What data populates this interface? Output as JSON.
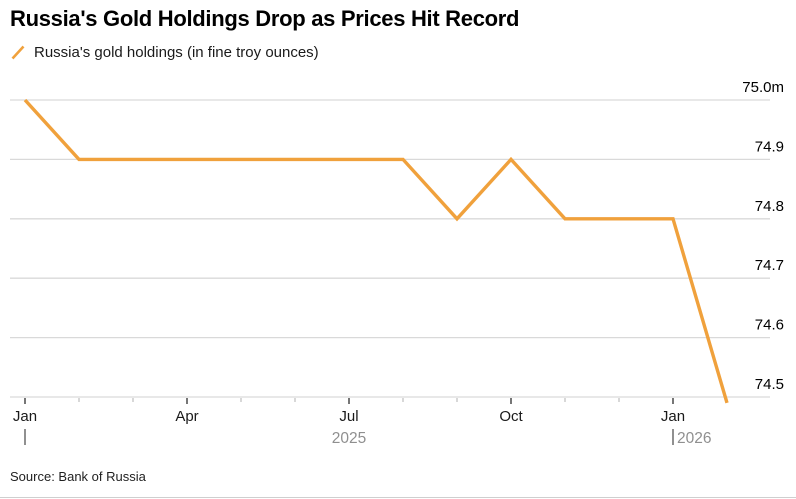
{
  "header": {
    "title": "Russia's Gold Holdings Drop as Prices Hit Record",
    "legend_label": "Russia's gold holdings (in fine troy ounces)"
  },
  "footer": {
    "source": "Source: Bank of Russia"
  },
  "colors": {
    "accent": "#F0A13C",
    "grid": "#d9d9d9",
    "y_label": "#000000",
    "month_label": "#1a1a1a",
    "year_label": "#8f8f8f",
    "year_divider": "#555555",
    "tick_major": "#3c3c3c",
    "tick_minor": "#b0b0b0"
  },
  "chart_data": {
    "type": "line",
    "title": "Russia's Gold Holdings Drop as Prices Hit Record",
    "series_name": "Russia's gold holdings (in fine troy ounces)",
    "x": [
      "2025-01",
      "2025-02",
      "2025-03",
      "2025-04",
      "2025-05",
      "2025-06",
      "2025-07",
      "2025-08",
      "2025-09",
      "2025-10",
      "2025-11",
      "2025-12",
      "2026-01",
      "2026-02"
    ],
    "values": [
      75.0,
      74.9,
      74.9,
      74.9,
      74.9,
      74.9,
      74.9,
      74.9,
      74.8,
      74.9,
      74.8,
      74.8,
      74.8,
      74.49
    ],
    "y_ticks": [
      {
        "value": 75.0,
        "label": "75.0m"
      },
      {
        "value": 74.9,
        "label": "74.9"
      },
      {
        "value": 74.8,
        "label": "74.8"
      },
      {
        "value": 74.7,
        "label": "74.7"
      },
      {
        "value": 74.6,
        "label": "74.6"
      },
      {
        "value": 74.5,
        "label": "74.5"
      }
    ],
    "ylim": [
      74.45,
      75.03
    ],
    "x_major_ticks": [
      {
        "index": 0,
        "label": "Jan"
      },
      {
        "index": 3,
        "label": "Apr"
      },
      {
        "index": 6,
        "label": "Jul"
      },
      {
        "index": 9,
        "label": "Oct"
      },
      {
        "index": 12,
        "label": "Jan"
      }
    ],
    "x_minor_tick_indices": [
      1,
      2,
      4,
      5,
      7,
      8,
      10,
      11,
      13
    ],
    "year_markers": [
      {
        "index": 0,
        "label": "2025",
        "anchor": "middle",
        "label_anchor_index": 6
      },
      {
        "index": 12,
        "label": "2026",
        "anchor": "start"
      }
    ],
    "grid": true,
    "legend_position": "top-left"
  }
}
